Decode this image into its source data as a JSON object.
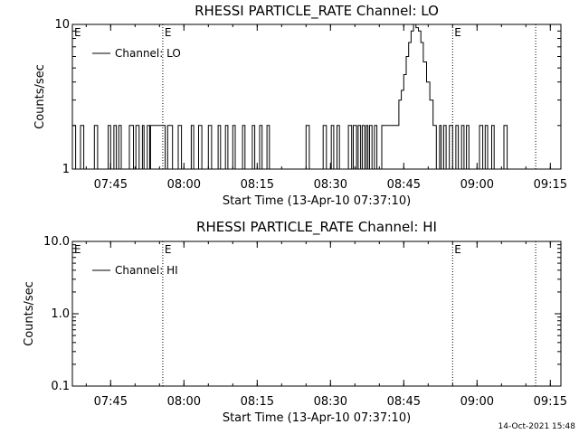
{
  "chart_data": [
    {
      "type": "line",
      "title": "RHESSI PARTICLE_RATE Channel: LO",
      "xlabel": "Start Time (13-Apr-10 07:37:10)",
      "ylabel": "Counts/sec",
      "yscale": "log",
      "ylim": [
        1,
        10
      ],
      "ytick_labels": [
        "1",
        "10"
      ],
      "xlim": [
        "07:37:10",
        "09:17:10"
      ],
      "xtick_labels": [
        "07:45",
        "08:00",
        "08:15",
        "08:30",
        "08:45",
        "09:00",
        "09:15"
      ],
      "legend_placement": "top-left",
      "vlines": [
        {
          "x": "07:55:40",
          "style": "dotted",
          "label": "E"
        },
        {
          "x": "08:55:00",
          "style": "dotted",
          "label": "E"
        },
        {
          "x": "09:12:00",
          "style": "dotted",
          "label": ""
        }
      ],
      "series": [
        {
          "name": "Channel: LO",
          "points": [
            [
              "07:37:10",
              2
            ],
            [
              "07:37:50",
              1
            ],
            [
              "07:38:50",
              2
            ],
            [
              "07:39:30",
              1
            ],
            [
              "07:41:40",
              2
            ],
            [
              "07:42:20",
              1
            ],
            [
              "07:44:30",
              2
            ],
            [
              "07:45:00",
              1
            ],
            [
              "07:45:40",
              2
            ],
            [
              "07:46:10",
              1
            ],
            [
              "07:46:40",
              2
            ],
            [
              "07:47:10",
              1
            ],
            [
              "07:48:50",
              2
            ],
            [
              "07:49:40",
              1
            ],
            [
              "07:50:10",
              2
            ],
            [
              "07:50:50",
              1
            ],
            [
              "07:51:30",
              2
            ],
            [
              "07:51:50",
              1
            ],
            [
              "07:52:30",
              2
            ],
            [
              "07:53:00",
              1
            ],
            [
              "07:53:10",
              2
            ],
            [
              "07:55:40",
              2
            ],
            [
              "07:56:10",
              1
            ],
            [
              "07:56:40",
              2
            ],
            [
              "07:57:40",
              1
            ],
            [
              "07:58:50",
              2
            ],
            [
              "07:59:30",
              1
            ],
            [
              "08:01:30",
              2
            ],
            [
              "08:02:00",
              1
            ],
            [
              "08:03:00",
              2
            ],
            [
              "08:03:40",
              1
            ],
            [
              "08:05:00",
              2
            ],
            [
              "08:05:40",
              1
            ],
            [
              "08:07:00",
              2
            ],
            [
              "08:07:30",
              1
            ],
            [
              "08:08:30",
              2
            ],
            [
              "08:09:00",
              1
            ],
            [
              "08:10:00",
              2
            ],
            [
              "08:10:30",
              1
            ],
            [
              "08:12:00",
              2
            ],
            [
              "08:12:30",
              1
            ],
            [
              "08:14:00",
              2
            ],
            [
              "08:14:30",
              1
            ],
            [
              "08:15:30",
              2
            ],
            [
              "08:16:00",
              1
            ],
            [
              "08:17:00",
              2
            ],
            [
              "08:17:30",
              1
            ],
            [
              "08:25:00",
              2
            ],
            [
              "08:25:40",
              1
            ],
            [
              "08:28:30",
              2
            ],
            [
              "08:29:10",
              1
            ],
            [
              "08:30:10",
              2
            ],
            [
              "08:30:40",
              1
            ],
            [
              "08:31:20",
              2
            ],
            [
              "08:31:50",
              1
            ],
            [
              "08:33:40",
              2
            ],
            [
              "08:34:20",
              1
            ],
            [
              "08:34:40",
              2
            ],
            [
              "08:35:20",
              1
            ],
            [
              "08:35:40",
              2
            ],
            [
              "08:36:10",
              1
            ],
            [
              "08:36:30",
              2
            ],
            [
              "08:37:00",
              1
            ],
            [
              "08:37:20",
              2
            ],
            [
              "08:37:40",
              1
            ],
            [
              "08:38:00",
              2
            ],
            [
              "08:38:30",
              1
            ],
            [
              "08:39:00",
              2
            ],
            [
              "08:39:30",
              1
            ],
            [
              "08:40:30",
              2
            ],
            [
              "08:43:40",
              2
            ],
            [
              "08:44:00",
              3
            ],
            [
              "08:44:30",
              3.5
            ],
            [
              "08:45:00",
              4.5
            ],
            [
              "08:45:30",
              6
            ],
            [
              "08:46:00",
              7.5
            ],
            [
              "08:46:30",
              9
            ],
            [
              "08:47:00",
              10
            ],
            [
              "08:47:30",
              9.5
            ],
            [
              "08:48:00",
              9
            ],
            [
              "08:48:30",
              7.5
            ],
            [
              "08:49:00",
              5.5
            ],
            [
              "08:49:40",
              4
            ],
            [
              "08:50:20",
              3
            ],
            [
              "08:51:00",
              2
            ],
            [
              "08:51:40",
              1
            ],
            [
              "08:52:20",
              2
            ],
            [
              "08:52:40",
              1
            ],
            [
              "08:53:10",
              2
            ],
            [
              "08:53:40",
              1
            ],
            [
              "08:54:20",
              2
            ],
            [
              "08:55:00",
              1
            ],
            [
              "08:55:40",
              2
            ],
            [
              "08:56:10",
              1
            ],
            [
              "08:56:50",
              2
            ],
            [
              "08:57:20",
              1
            ],
            [
              "08:57:50",
              2
            ],
            [
              "08:58:20",
              1
            ],
            [
              "09:00:30",
              2
            ],
            [
              "09:01:10",
              1
            ],
            [
              "09:01:40",
              2
            ],
            [
              "09:02:10",
              1
            ],
            [
              "09:03:00",
              2
            ],
            [
              "09:03:30",
              1
            ],
            [
              "09:05:30",
              2
            ],
            [
              "09:06:10",
              1
            ],
            [
              "09:06:40",
              1
            ]
          ]
        }
      ]
    },
    {
      "type": "line",
      "title": "RHESSI PARTICLE_RATE Channel: HI",
      "xlabel": "Start Time (13-Apr-10 07:37:10)",
      "ylabel": "Counts/sec",
      "yscale": "log",
      "ylim": [
        0.1,
        10
      ],
      "ytick_labels": [
        "0.1",
        "1.0",
        "10.0"
      ],
      "xlim": [
        "07:37:10",
        "09:17:10"
      ],
      "xtick_labels": [
        "07:45",
        "08:00",
        "08:15",
        "08:30",
        "08:45",
        "09:00",
        "09:15"
      ],
      "legend_placement": "top-left",
      "vlines": [
        {
          "x": "07:55:40",
          "style": "dotted",
          "label": "E"
        },
        {
          "x": "08:55:00",
          "style": "dotted",
          "label": "E"
        },
        {
          "x": "09:12:00",
          "style": "dotted",
          "label": ""
        }
      ],
      "series": [
        {
          "name": "Channel: HI",
          "points": []
        }
      ]
    }
  ],
  "panel_start_marker": "E",
  "timestamp": "14-Oct-2021 15:48"
}
